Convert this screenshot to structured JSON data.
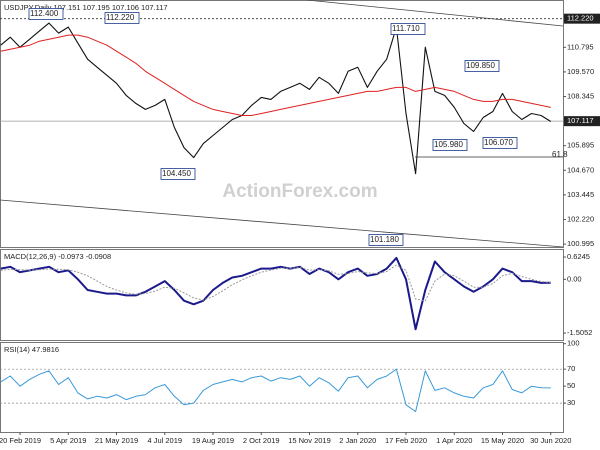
{
  "chart_data": [
    {
      "type": "line",
      "title": "USDJPY,Daily  107.151 107.195 107.106 107.117",
      "watermark": "ActionForex.com",
      "categories": [
        null,
        null,
        "20 Feb 2019",
        null,
        null,
        null,
        null,
        "5 Apr 2019",
        null,
        null,
        null,
        null,
        "21 May 2019",
        null,
        null,
        null,
        null,
        "4 Jul 2019",
        null,
        null,
        null,
        null,
        "19 Aug 2019",
        null,
        null,
        null,
        null,
        "2 Oct 2019",
        null,
        null,
        null,
        null,
        "15 Nov 2019",
        null,
        null,
        null,
        null,
        "2 Jan 2020",
        null,
        null,
        null,
        null,
        "17 Feb 2020",
        null,
        null,
        null,
        null,
        "1 Apr 2020",
        null,
        null,
        null,
        null,
        "15 May 2020",
        null,
        null,
        null,
        null,
        "30 Jun 2020"
      ],
      "series": [
        {
          "name": "USDJPY",
          "color": "#111111",
          "values": [
            110.9,
            111.3,
            110.8,
            111.2,
            111.6,
            112.0,
            111.5,
            111.8,
            111.0,
            110.2,
            109.8,
            109.4,
            109.0,
            108.4,
            108.0,
            107.7,
            107.9,
            108.2,
            106.8,
            105.8,
            105.3,
            106.0,
            106.4,
            106.8,
            107.2,
            107.4,
            107.9,
            108.3,
            108.2,
            108.6,
            108.8,
            109.0,
            108.7,
            109.3,
            109.0,
            108.5,
            109.6,
            109.8,
            108.8,
            109.6,
            110.2,
            111.8,
            107.5,
            104.5,
            110.8,
            108.6,
            108.4,
            107.8,
            107.0,
            106.6,
            107.3,
            107.6,
            108.5,
            107.6,
            107.2,
            107.5,
            107.4,
            107.1
          ]
        },
        {
          "name": "MA",
          "color": "#e02020",
          "values": [
            110.6,
            110.7,
            110.8,
            110.9,
            111.1,
            111.2,
            111.3,
            111.4,
            111.4,
            111.3,
            111.1,
            110.9,
            110.6,
            110.3,
            110.0,
            109.6,
            109.3,
            109.0,
            108.7,
            108.4,
            108.1,
            107.9,
            107.7,
            107.6,
            107.5,
            107.4,
            107.4,
            107.5,
            107.6,
            107.7,
            107.8,
            107.9,
            108.0,
            108.1,
            108.2,
            108.3,
            108.4,
            108.5,
            108.6,
            108.6,
            108.7,
            108.8,
            108.8,
            108.6,
            108.7,
            108.8,
            108.7,
            108.6,
            108.4,
            108.2,
            108.1,
            108.1,
            108.2,
            108.2,
            108.1,
            108.0,
            107.9,
            107.8
          ]
        }
      ],
      "ylim": [
        100.85,
        113.15
      ],
      "yticks": [
        110.795,
        {
          "value": 109.57,
          "label": "109.570"
        },
        108.345,
        105.895,
        {
          "value": 104.67,
          "label": "104.670"
        },
        103.445,
        {
          "value": 102.22,
          "label": "102.220"
        },
        100.995
      ],
      "resistance": {
        "value": 112.22,
        "label": "112.220"
      },
      "last_price": {
        "value": 107.117,
        "label": "107.117"
      },
      "annotations": [
        "112.400",
        "112.220",
        "111.710",
        "109.850",
        "105.980",
        "106.070",
        "104.450",
        "101.180",
        "61.8"
      ]
    },
    {
      "type": "line",
      "title": "MACD(12,26,9) -0.0973 -0.0908",
      "series": [
        {
          "name": "MACD",
          "color": "#1a1a8c",
          "values": [
            0.3,
            0.35,
            0.2,
            0.25,
            0.3,
            0.35,
            0.2,
            0.25,
            0.0,
            -0.3,
            -0.35,
            -0.4,
            -0.4,
            -0.45,
            -0.45,
            -0.35,
            -0.2,
            -0.05,
            -0.3,
            -0.6,
            -0.7,
            -0.6,
            -0.3,
            -0.1,
            0.05,
            0.1,
            0.2,
            0.3,
            0.3,
            0.35,
            0.3,
            0.35,
            0.15,
            0.3,
            0.2,
            0.0,
            0.2,
            0.3,
            0.1,
            0.15,
            0.3,
            0.6,
            0.0,
            -1.4,
            -0.3,
            0.5,
            0.2,
            0.0,
            -0.2,
            -0.35,
            -0.2,
            0.0,
            0.3,
            0.2,
            -0.05,
            -0.05,
            -0.1,
            -0.0973
          ]
        },
        {
          "name": "Signal",
          "color": "#999999",
          "values": [
            0.25,
            0.28,
            0.27,
            0.26,
            0.27,
            0.29,
            0.28,
            0.27,
            0.2,
            0.1,
            -0.05,
            -0.2,
            -0.3,
            -0.38,
            -0.42,
            -0.4,
            -0.33,
            -0.22,
            -0.25,
            -0.38,
            -0.52,
            -0.58,
            -0.48,
            -0.32,
            -0.15,
            -0.02,
            0.1,
            0.2,
            0.26,
            0.31,
            0.31,
            0.33,
            0.26,
            0.27,
            0.24,
            0.14,
            0.16,
            0.22,
            0.18,
            0.16,
            0.22,
            0.4,
            0.25,
            -0.55,
            -0.6,
            -0.05,
            0.15,
            0.1,
            -0.05,
            -0.22,
            -0.22,
            -0.12,
            0.1,
            0.17,
            0.08,
            0.0,
            -0.06,
            -0.0908
          ]
        }
      ],
      "ylim": [
        -1.7,
        0.85
      ],
      "yticks": [
        0.6245,
        {
          "value": 0,
          "label": "0.00"
        },
        -1.5052
      ]
    },
    {
      "type": "line",
      "title": "RSI(14) 47.9816",
      "series": [
        {
          "name": "RSI",
          "color": "#3a9ad9",
          "values": [
            55,
            62,
            50,
            58,
            64,
            68,
            52,
            60,
            42,
            35,
            38,
            36,
            40,
            34,
            38,
            40,
            48,
            52,
            38,
            28,
            30,
            45,
            52,
            55,
            58,
            55,
            60,
            62,
            56,
            60,
            58,
            62,
            50,
            60,
            54,
            44,
            60,
            62,
            48,
            58,
            62,
            70,
            28,
            20,
            68,
            45,
            48,
            42,
            38,
            36,
            48,
            52,
            68,
            46,
            42,
            50,
            48,
            47.9816
          ]
        }
      ],
      "ylim": [
        -4,
        102
      ],
      "yticks": [
        100,
        70,
        50,
        30
      ],
      "levels": [
        70,
        30
      ]
    }
  ]
}
